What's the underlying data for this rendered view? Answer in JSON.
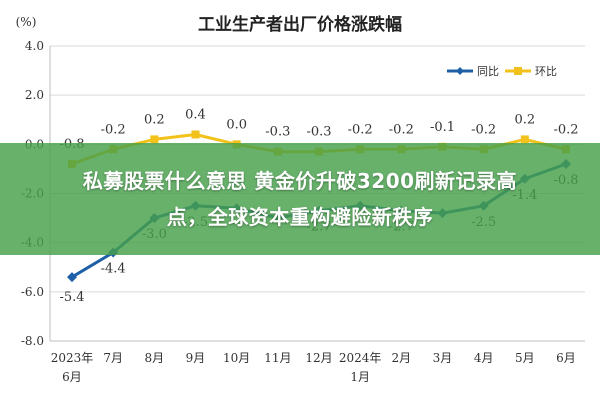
{
  "chart_data": {
    "type": "line",
    "title": "工业生产者出厂价格涨跌幅",
    "ylabel": "(%)",
    "xlabel": "",
    "ylim": [
      -8.0,
      4.0
    ],
    "yticks": [
      "4.0",
      "2.0",
      "0.0",
      "-2.0",
      "-4.0",
      "-6.0",
      "-8.0"
    ],
    "grid": true,
    "legend": "top-right",
    "categories": [
      [
        "2023年",
        "6月"
      ],
      [
        "7月"
      ],
      [
        "8月"
      ],
      [
        "9月"
      ],
      [
        "10月"
      ],
      [
        "11月"
      ],
      [
        "12月"
      ],
      [
        "2024年",
        "1月"
      ],
      [
        "2月"
      ],
      [
        "3月"
      ],
      [
        "4月"
      ],
      [
        "5月"
      ],
      [
        "6月"
      ]
    ],
    "series": [
      {
        "name": "同比",
        "color": "#1f5fa8",
        "marker": "diamond",
        "values": [
          -5.4,
          -4.4,
          -3.0,
          -2.5,
          -2.6,
          -3.0,
          -2.7,
          -2.5,
          -2.7,
          -2.8,
          -2.5,
          -1.4,
          -0.8
        ],
        "labels": [
          "-5.4",
          "-4.4",
          "-3.0",
          "-2.5",
          "",
          "",
          "-2.7",
          "",
          "-2.7",
          "",
          "-2.5",
          "-1.4",
          "-0.8"
        ]
      },
      {
        "name": "环比",
        "color": "#f2c21b",
        "marker": "square",
        "values": [
          -0.8,
          -0.2,
          0.2,
          0.4,
          0.0,
          -0.3,
          -0.3,
          -0.2,
          -0.2,
          -0.1,
          -0.2,
          0.2,
          -0.2
        ],
        "labels": [
          "-0.8",
          "-0.2",
          "0.2",
          "0.4",
          "0.0",
          "-0.3",
          "-0.3",
          "-0.2",
          "-0.2",
          "-0.1",
          "-0.2",
          "0.2",
          "-0.2"
        ]
      }
    ]
  },
  "headline": {
    "line1": "私募股票什么意思 黄金价升破3200刷新记录高",
    "line2": "点，全球资本重构避险新秩序"
  }
}
